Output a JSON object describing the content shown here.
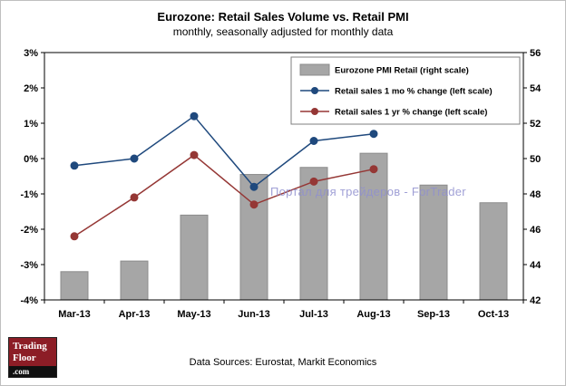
{
  "page": {
    "title": "Eurozone: Retail Sales Volume vs. Retail PMI",
    "subtitle": "monthly, seasonally adjusted for monthly data",
    "source_note": "Data Sources: Eurostat, Markit Economics",
    "watermark": "Портал для трейдеров - ForTrader",
    "logo": {
      "line1": "Trading",
      "line2": "Floor",
      "line3": ".com"
    }
  },
  "chart_data": {
    "type": "combo",
    "title": "Eurozone: Retail Sales Volume vs. Retail PMI",
    "subtitle": "monthly, seasonally adjusted for monthly data",
    "categories": [
      "Mar-13",
      "Apr-13",
      "May-13",
      "Jun-13",
      "Jul-13",
      "Aug-13",
      "Sep-13",
      "Oct-13"
    ],
    "series": [
      {
        "name": "Eurozone PMI Retail (right scale)",
        "type": "bar",
        "axis": "right",
        "color": "#a6a6a6",
        "border_color": "#8c8c8c",
        "values": [
          43.6,
          44.2,
          46.8,
          49.1,
          49.5,
          50.3,
          48.5,
          47.5
        ]
      },
      {
        "name": "Retail sales 1 mo % change (left scale)",
        "type": "line",
        "axis": "left",
        "color": "#1f497d",
        "values": [
          -0.2,
          0.0,
          1.2,
          -0.8,
          0.5,
          0.7,
          null,
          null
        ]
      },
      {
        "name": "Retail sales 1 yr % change (left scale)",
        "type": "line",
        "axis": "left",
        "color": "#953735",
        "values": [
          -2.2,
          -1.1,
          0.1,
          -1.3,
          -0.65,
          -0.3,
          null,
          null
        ]
      }
    ],
    "left_axis": {
      "min": -4,
      "max": 3,
      "tick_values": [
        3,
        2,
        1,
        0,
        -1,
        -2,
        -3,
        -4
      ],
      "tick_labels": [
        "3%",
        "2%",
        "1%",
        "0%",
        "-1%",
        "-2%",
        "-3%",
        "-4%"
      ]
    },
    "right_axis": {
      "min": 42,
      "max": 56,
      "tick_values": [
        56,
        54,
        52,
        50,
        48,
        46,
        44,
        42
      ],
      "tick_labels": [
        "56",
        "54",
        "52",
        "50",
        "48",
        "46",
        "44",
        "42"
      ]
    },
    "legend_position": "top-right",
    "grid": false
  }
}
